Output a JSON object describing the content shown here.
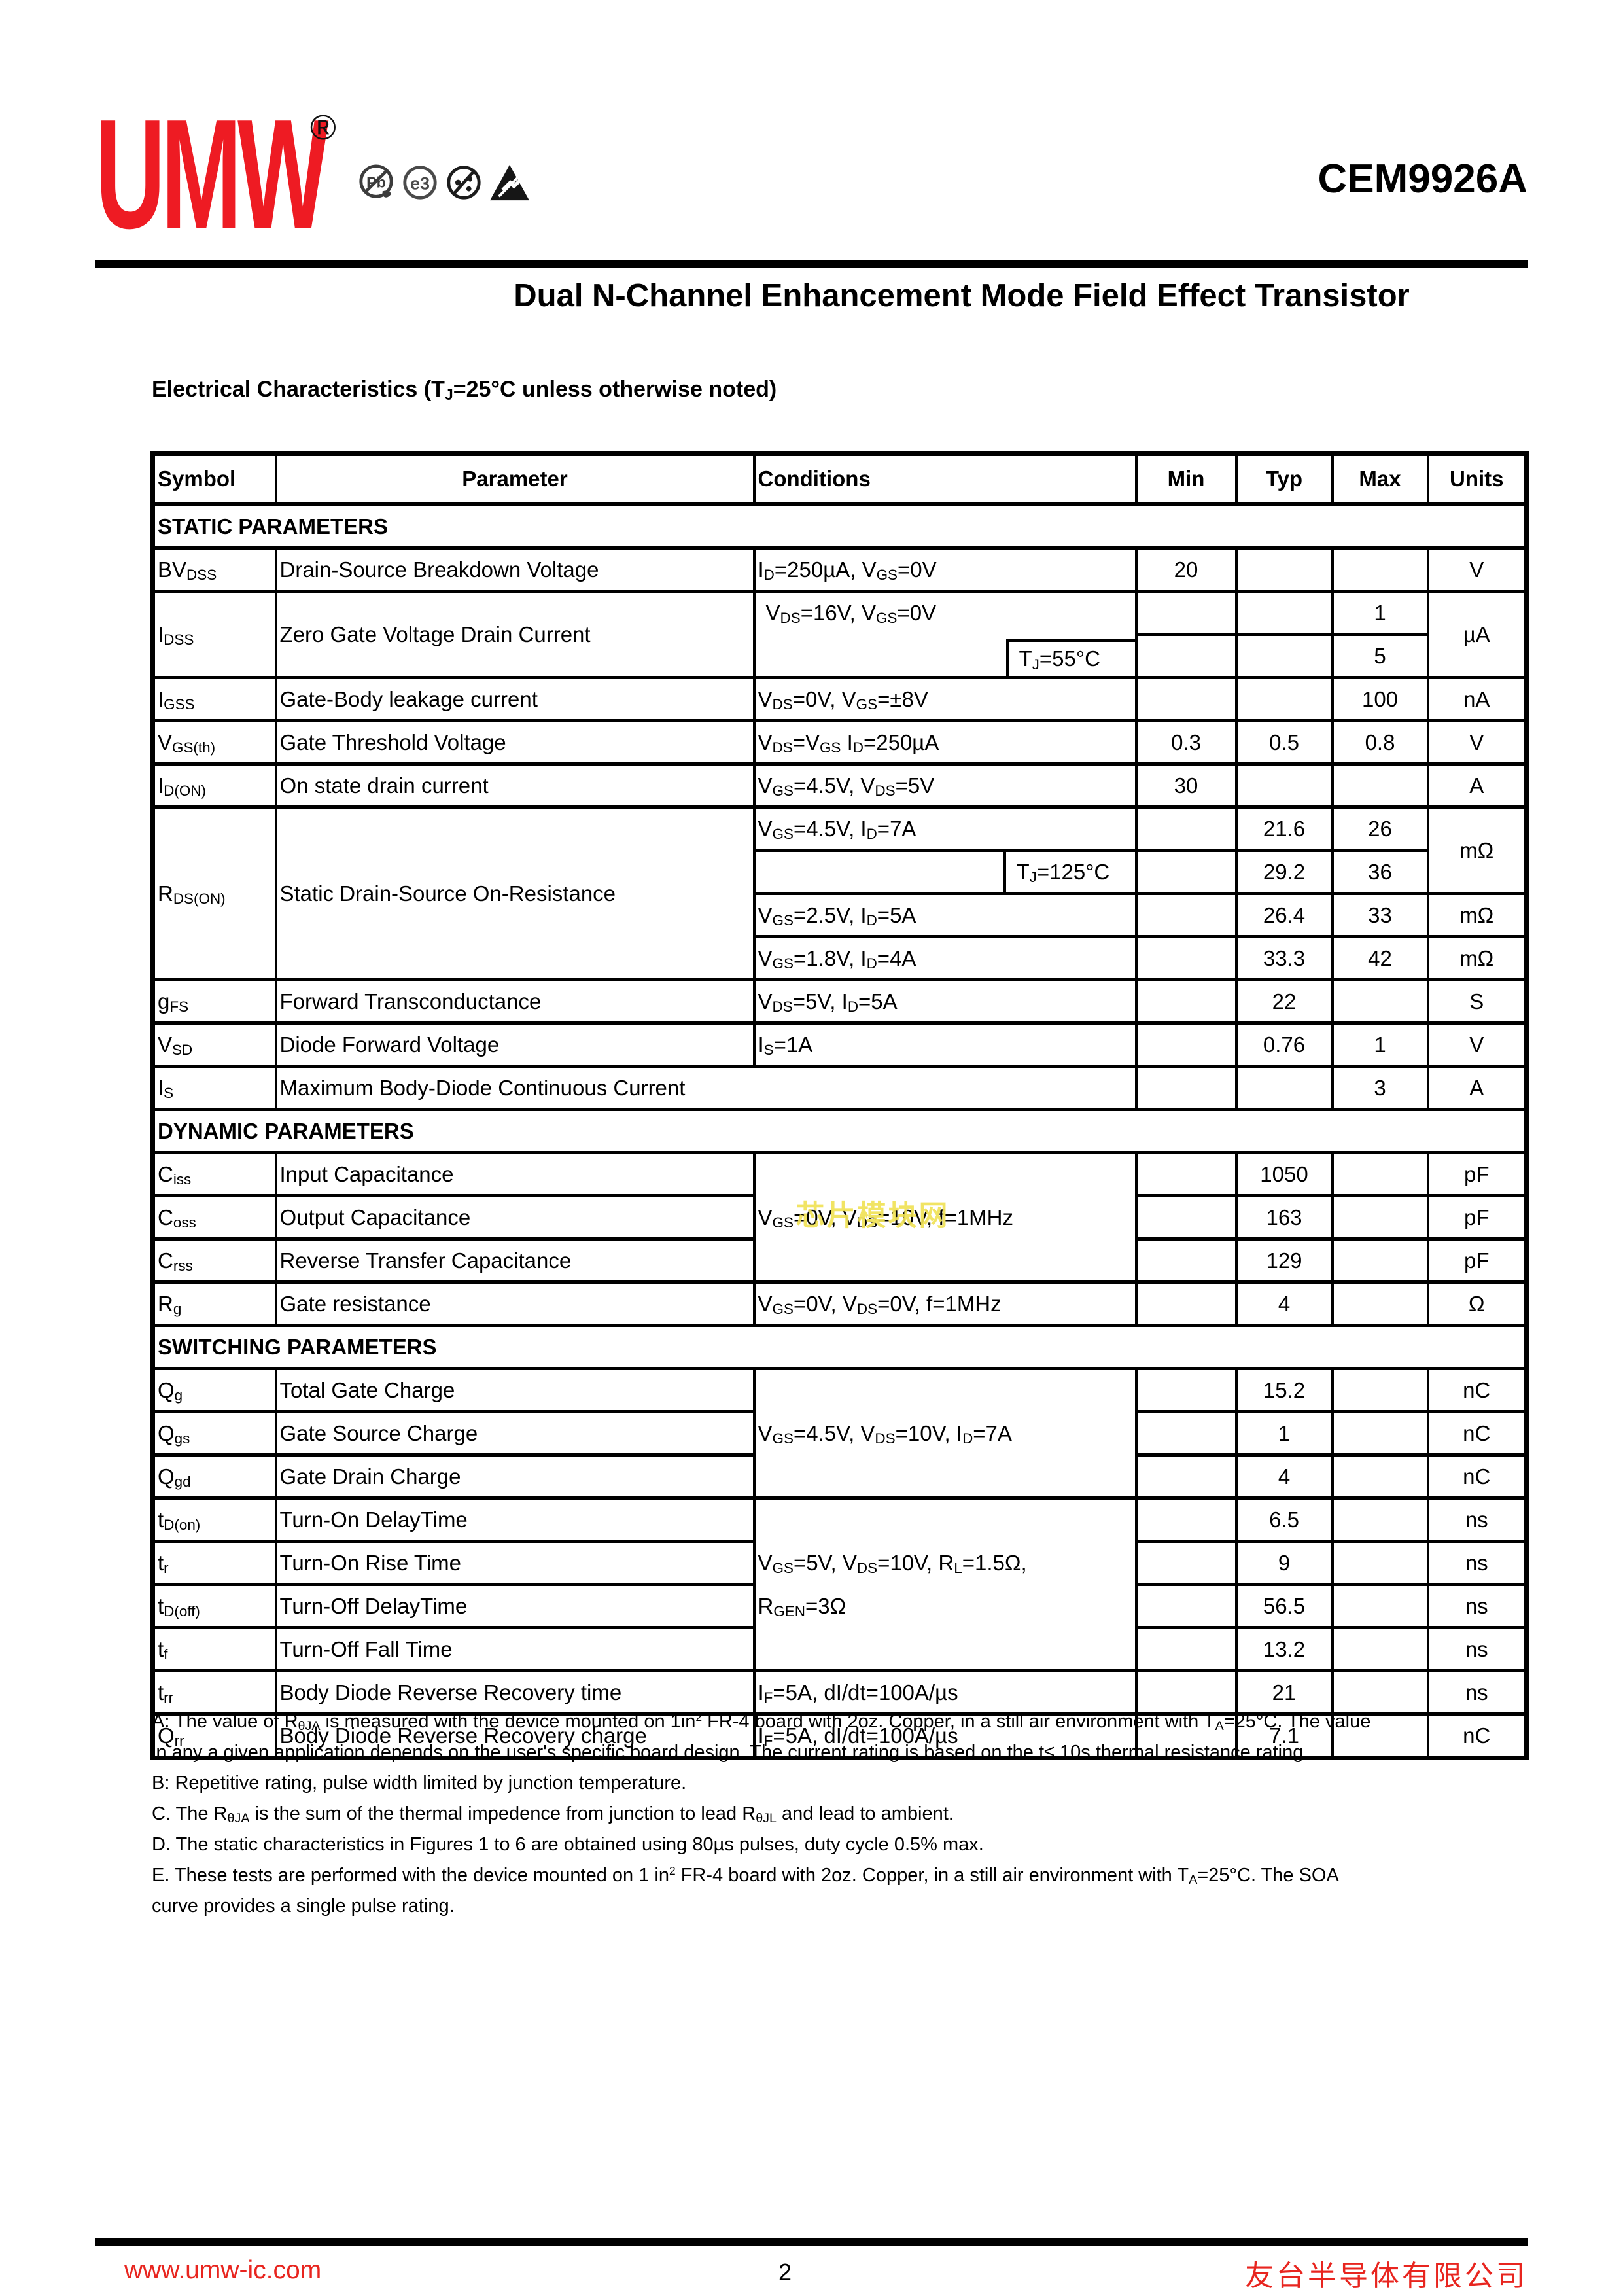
{
  "colors": {
    "brand_red": "#ee1b23",
    "footer_red": "#e8251f",
    "watermark_yellow": "#f0e256",
    "line_black": "#000000"
  },
  "header": {
    "logo_text": "UMW",
    "registered_mark": "®",
    "icons": [
      "pb-free-icon",
      "e3-icon",
      "halogen-free-icon",
      "esd-icon"
    ],
    "part_number": "CEM9926A",
    "title": "Dual N-Channel Enhancement Mode Field Effect Transistor"
  },
  "ec_heading": "Electrical Characteristics (T~J~=25°C unless otherwise noted)",
  "table": {
    "columns": [
      "Symbol",
      "Parameter",
      "Conditions",
      "Min",
      "Typ",
      "Max",
      "Units"
    ],
    "sections": {
      "static": "STATIC PARAMETERS",
      "dynamic": "DYNAMIC PARAMETERS",
      "switching": "SWITCHING PARAMETERS"
    },
    "rows": {
      "bvdss": {
        "sym": "BV~DSS~",
        "par": "Drain-Source Breakdown Voltage",
        "cond": "I~D~=250µA, V~GS~=0V",
        "min": "20",
        "unit": "V"
      },
      "idss": {
        "sym": "I~DSS~",
        "par": "Zero Gate Voltage Drain Current",
        "cond": "V~DS~=16V, V~GS~=0V",
        "cond2": "T~J~=55°C",
        "max1": "1",
        "max2": "5",
        "unit": "µA"
      },
      "igss": {
        "sym": "I~GSS~",
        "par": "Gate-Body leakage current",
        "cond": "V~DS~=0V, V~GS~=±8V",
        "max": "100",
        "unit": "nA"
      },
      "vgsth": {
        "sym": "V~GS(th)~",
        "par": "Gate Threshold Voltage",
        "cond": "V~DS~=V~GS~ I~D~=250µA",
        "min": "0.3",
        "typ": "0.5",
        "max": "0.8",
        "unit": "V"
      },
      "idon": {
        "sym": "I~D(ON)~",
        "par": "On state drain current",
        "cond": "V~GS~=4.5V, V~DS~=5V",
        "min": "30",
        "unit": "A"
      },
      "rdson": {
        "sym": "R~DS(ON)~",
        "par": "Static Drain-Source On-Resistance",
        "cond1": "V~GS~=4.5V, I~D~=7A",
        "typ1": "21.6",
        "max1": "26",
        "unit12": "mΩ",
        "cond2": "T~J~=125°C",
        "typ2": "29.2",
        "max2": "36",
        "cond3": "V~GS~=2.5V, I~D~=5A",
        "typ3": "26.4",
        "max3": "33",
        "unit3": "mΩ",
        "cond4": "V~GS~=1.8V, I~D~=4A",
        "typ4": "33.3",
        "max4": "42",
        "unit4": "mΩ"
      },
      "gfs": {
        "sym": "g~FS~",
        "par": "Forward Transconductance",
        "cond": "V~DS~=5V, I~D~=5A",
        "typ": "22",
        "unit": "S"
      },
      "vsd": {
        "sym": "V~SD~",
        "par": "Diode Forward Voltage",
        "cond": "I~S~=1A",
        "typ": "0.76",
        "max": "1",
        "unit": "V"
      },
      "is": {
        "sym": "I~S~",
        "par": "Maximum Body-Diode Continuous Current",
        "max": "3",
        "unit": "A"
      },
      "ciss": {
        "sym": "C~iss~",
        "par": "Input Capacitance",
        "cond": "V~GS~=0V, V~DS~=10V, f=1MHz",
        "typ": "1050",
        "unit": "pF"
      },
      "coss": {
        "sym": "C~oss~",
        "par": "Output Capacitance",
        "typ": "163",
        "unit": "pF"
      },
      "crss": {
        "sym": "C~rss~",
        "par": "Reverse Transfer Capacitance",
        "typ": "129",
        "unit": "pF"
      },
      "rg": {
        "sym": "R~g~",
        "par": "Gate resistance",
        "cond": "V~GS~=0V, V~DS~=0V, f=1MHz",
        "typ": "4",
        "unit": "Ω"
      },
      "qg": {
        "sym": "Q~g~",
        "par": "Total Gate Charge",
        "cond": "V~GS~=4.5V, V~DS~=10V, I~D~=7A",
        "typ": "15.2",
        "unit": "nC"
      },
      "qgs": {
        "sym": "Q~gs~",
        "par": "Gate Source Charge",
        "typ": "1",
        "unit": "nC"
      },
      "qgd": {
        "sym": "Q~gd~",
        "par": "Gate Drain Charge",
        "typ": "4",
        "unit": "nC"
      },
      "tdon": {
        "sym": "t~D(on)~",
        "par": "Turn-On DelayTime",
        "cond": "V~GS~=5V, V~DS~=10V, R~L~=1.5Ω,\nR~GEN~=3Ω",
        "typ": "6.5",
        "unit": "ns"
      },
      "tr": {
        "sym": "t~r~",
        "par": "Turn-On Rise Time",
        "typ": "9",
        "unit": "ns"
      },
      "tdoff": {
        "sym": "t~D(off)~",
        "par": "Turn-Off DelayTime",
        "typ": "56.5",
        "unit": "ns"
      },
      "tf": {
        "sym": "t~f~",
        "par": "Turn-Off Fall Time",
        "typ": "13.2",
        "unit": "ns"
      },
      "trr": {
        "sym": "t~rr~",
        "par": "Body Diode Reverse Recovery time",
        "cond": "I~F~=5A, dI/dt=100A/µs",
        "typ": "21",
        "unit": "ns"
      },
      "qrr": {
        "sym": "Q~rr~",
        "par": "Body Diode Reverse Recovery charge",
        "cond": "I~F~=5A, dI/dt=100A/µs",
        "typ": "7.1",
        "unit": "nC"
      }
    }
  },
  "notes": [
    "A: The value of R~θJA~ is measured with the device mounted on 1in^2^ FR-4 board with 2oz. Copper, in a still air environment with T~A~=25°C. The value\nin any a given application depends on the user's specific board design. The current rating is based on the t≤ 10s thermal resistance rating.",
    "B: Repetitive rating, pulse width limited by junction temperature.",
    "C. The R~θJA~ is the sum of the thermal impedence from junction to lead R~θJL~ and lead to ambient.",
    "D. The static characteristics in Figures 1 to 6 are obtained using 80µs pulses, duty cycle 0.5% max.",
    "E. These tests are performed with the device mounted on 1 in^2^ FR-4 board with 2oz. Copper, in a still air environment with T~A~=25°C. The SOA\ncurve provides a single pulse rating."
  ],
  "watermark": "芯片模块网",
  "footer": {
    "url": "www.umw-ic.com",
    "page": "2",
    "company": "友台半导体有限公司"
  }
}
